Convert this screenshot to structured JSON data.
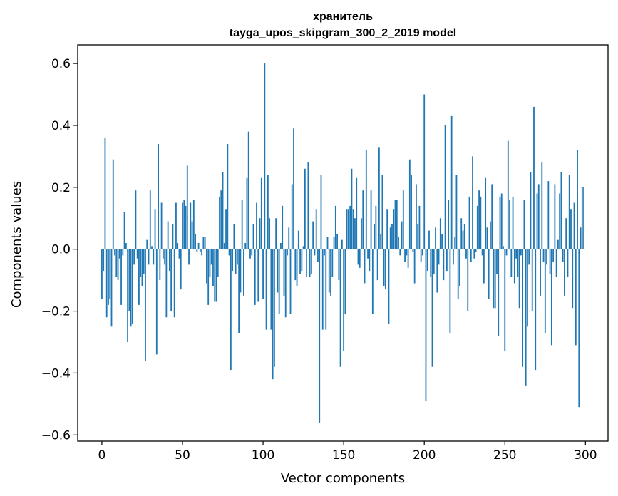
{
  "chart_data": {
    "type": "bar",
    "title_line1": "хранитель",
    "title_line2": "tayga_upos_skipgram_300_2_2019 model",
    "xlabel": "Vector components",
    "ylabel": "Components values",
    "xlim": [
      -15,
      314
    ],
    "ylim": [
      -0.62,
      0.66
    ],
    "x_ticks": [
      0,
      50,
      100,
      150,
      200,
      250,
      300
    ],
    "x_tick_labels": [
      "0",
      "50",
      "100",
      "150",
      "200",
      "250",
      "300"
    ],
    "y_ticks": [
      -0.6,
      -0.4,
      -0.2,
      0.0,
      0.2,
      0.4,
      0.6
    ],
    "y_tick_labels": [
      "−0.6",
      "−0.4",
      "−0.2",
      "0.0",
      "0.2",
      "0.4",
      "0.6"
    ],
    "bar_color": "#1f77b4",
    "values": [
      -0.16,
      -0.07,
      0.36,
      -0.22,
      -0.18,
      -0.16,
      -0.25,
      0.29,
      -0.02,
      -0.09,
      -0.1,
      -0.03,
      -0.18,
      -0.02,
      0.12,
      0.02,
      -0.3,
      -0.2,
      -0.25,
      -0.24,
      -0.05,
      0.19,
      -0.03,
      -0.18,
      -0.09,
      -0.12,
      -0.08,
      -0.36,
      0.03,
      -0.05,
      0.19,
      0.01,
      -0.05,
      0.13,
      -0.34,
      0.34,
      -0.1,
      0.15,
      -0.03,
      -0.05,
      -0.22,
      0.09,
      -0.07,
      -0.2,
      0.08,
      -0.22,
      0.15,
      0.02,
      -0.03,
      -0.13,
      0.15,
      0.16,
      0.14,
      0.27,
      -0.05,
      0.15,
      0.09,
      0.16,
      0.05,
      -0.01,
      0.02,
      -0.01,
      -0.02,
      0.04,
      0.04,
      -0.11,
      -0.18,
      -0.09,
      -0.05,
      -0.12,
      -0.17,
      -0.17,
      -0.09,
      0.17,
      0.19,
      0.25,
      0.02,
      0.13,
      0.34,
      -0.02,
      -0.39,
      -0.07,
      0.08,
      -0.08,
      -0.05,
      -0.27,
      -0.14,
      0.16,
      -0.15,
      0.02,
      0.23,
      0.38,
      -0.03,
      -0.02,
      0.08,
      -0.18,
      0.15,
      -0.17,
      0.1,
      0.23,
      -0.16,
      0.6,
      -0.26,
      0.24,
      0.1,
      -0.26,
      -0.42,
      -0.38,
      0.1,
      -0.14,
      -0.21,
      0.02,
      0.14,
      -0.15,
      -0.22,
      -0.02,
      0.07,
      -0.21,
      0.21,
      0.39,
      -0.1,
      -0.12,
      0.06,
      -0.08,
      -0.07,
      0.01,
      0.26,
      -0.09,
      0.28,
      -0.09,
      -0.08,
      0.09,
      -0.02,
      0.13,
      -0.04,
      -0.56,
      0.24,
      -0.26,
      -0.02,
      -0.26,
      0.04,
      -0.14,
      -0.15,
      -0.09,
      0.04,
      0.14,
      0.05,
      -0.1,
      -0.38,
      0.03,
      -0.33,
      -0.21,
      0.13,
      0.13,
      0.14,
      0.26,
      0.13,
      0.1,
      0.23,
      -0.05,
      -0.06,
      0.1,
      0.19,
      -0.11,
      0.32,
      -0.03,
      -0.07,
      0.19,
      -0.21,
      0.08,
      0.14,
      -0.1,
      0.33,
      0.05,
      0.24,
      -0.12,
      -0.13,
      0.13,
      -0.24,
      0.07,
      0.08,
      0.13,
      0.16,
      0.16,
      0.04,
      -0.02,
      0.09,
      0.19,
      -0.04,
      -0.02,
      -0.06,
      0.29,
      0.24,
      -0.01,
      -0.11,
      0.21,
      0.08,
      0.14,
      -0.04,
      -0.02,
      0.5,
      -0.49,
      -0.07,
      0.06,
      -0.09,
      -0.38,
      -0.08,
      0.07,
      -0.14,
      -0.05,
      0.1,
      0.05,
      -0.1,
      0.4,
      -0.07,
      0.16,
      -0.27,
      0.43,
      -0.05,
      0.04,
      0.24,
      -0.16,
      -0.12,
      0.1,
      0.06,
      0.08,
      -0.03,
      -0.2,
      0.17,
      -0.04,
      0.3,
      -0.03,
      -0.01,
      0.14,
      0.19,
      0.17,
      -0.02,
      -0.11,
      0.23,
      0.07,
      -0.16,
      0.09,
      0.21,
      -0.19,
      -0.19,
      -0.08,
      -0.28,
      0.17,
      0.18,
      0.01,
      -0.33,
      -0.02,
      0.35,
      0.16,
      -0.09,
      0.17,
      -0.11,
      -0.03,
      -0.09,
      -0.19,
      -0.02,
      -0.38,
      0.16,
      -0.44,
      -0.25,
      -0.05,
      0.25,
      -0.2,
      0.46,
      -0.39,
      0.18,
      0.21,
      -0.15,
      0.28,
      -0.04,
      -0.27,
      -0.05,
      0.22,
      -0.08,
      -0.31,
      -0.04,
      0.21,
      -0.09,
      0.03,
      0.18,
      0.25,
      -0.04,
      -0.15,
      0.1,
      -0.09,
      0.24,
      0.13,
      -0.19,
      0.15,
      -0.31,
      0.32,
      -0.51,
      0.07,
      0.2,
      0.2
    ]
  }
}
